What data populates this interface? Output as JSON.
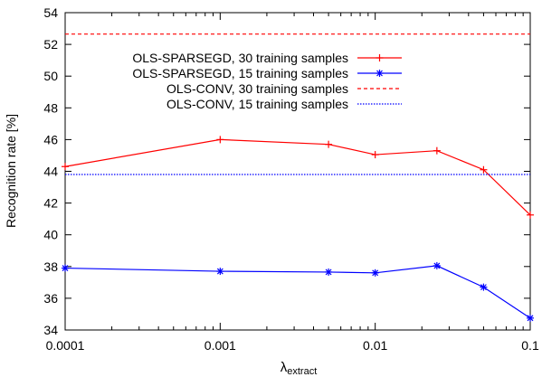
{
  "chart_data": {
    "type": "line",
    "xlabel_main": "λ",
    "xlabel_sub": "extract",
    "ylabel": "Recognition rate [%]",
    "xscale": "log",
    "xlim": [
      0.0001,
      0.1
    ],
    "ylim": [
      34,
      54
    ],
    "xticks": [
      {
        "value": 0.0001,
        "label": "0.0001"
      },
      {
        "value": 0.001,
        "label": "0.001"
      },
      {
        "value": 0.01,
        "label": "0.01"
      },
      {
        "value": 0.1,
        "label": "0.1"
      }
    ],
    "yticks": [
      {
        "value": 34,
        "label": "34"
      },
      {
        "value": 36,
        "label": "36"
      },
      {
        "value": 38,
        "label": "38"
      },
      {
        "value": 40,
        "label": "40"
      },
      {
        "value": 42,
        "label": "42"
      },
      {
        "value": 44,
        "label": "44"
      },
      {
        "value": 46,
        "label": "46"
      },
      {
        "value": 48,
        "label": "48"
      },
      {
        "value": 50,
        "label": "50"
      },
      {
        "value": 52,
        "label": "52"
      },
      {
        "value": 54,
        "label": "54"
      }
    ],
    "grid": false,
    "legend_position": "top-right",
    "series": [
      {
        "name": "OLS-SPARSEGD, 30 training samples",
        "color": "#ff0000",
        "marker": "plus",
        "dash": "solid",
        "x": [
          0.0001,
          0.001,
          0.005,
          0.01,
          0.025,
          0.05,
          0.1
        ],
        "y": [
          44.3,
          46.0,
          45.7,
          45.05,
          45.3,
          44.1,
          41.25
        ]
      },
      {
        "name": "OLS-SPARSEGD, 15 training samples",
        "color": "#0000ff",
        "marker": "star",
        "dash": "solid",
        "x": [
          0.0001,
          0.001,
          0.005,
          0.01,
          0.025,
          0.05,
          0.1
        ],
        "y": [
          37.9,
          37.7,
          37.65,
          37.6,
          38.05,
          36.7,
          34.75
        ]
      },
      {
        "name": "OLS-CONV, 30 training samples",
        "color": "#ff0000",
        "marker": "none",
        "dash": "dashed",
        "x": [
          0.0001,
          0.1
        ],
        "y": [
          52.65,
          52.65
        ]
      },
      {
        "name": "OLS-CONV, 15 training samples",
        "color": "#0000ff",
        "marker": "none",
        "dash": "dotted",
        "x": [
          0.0001,
          0.1
        ],
        "y": [
          43.8,
          43.8
        ]
      }
    ]
  }
}
